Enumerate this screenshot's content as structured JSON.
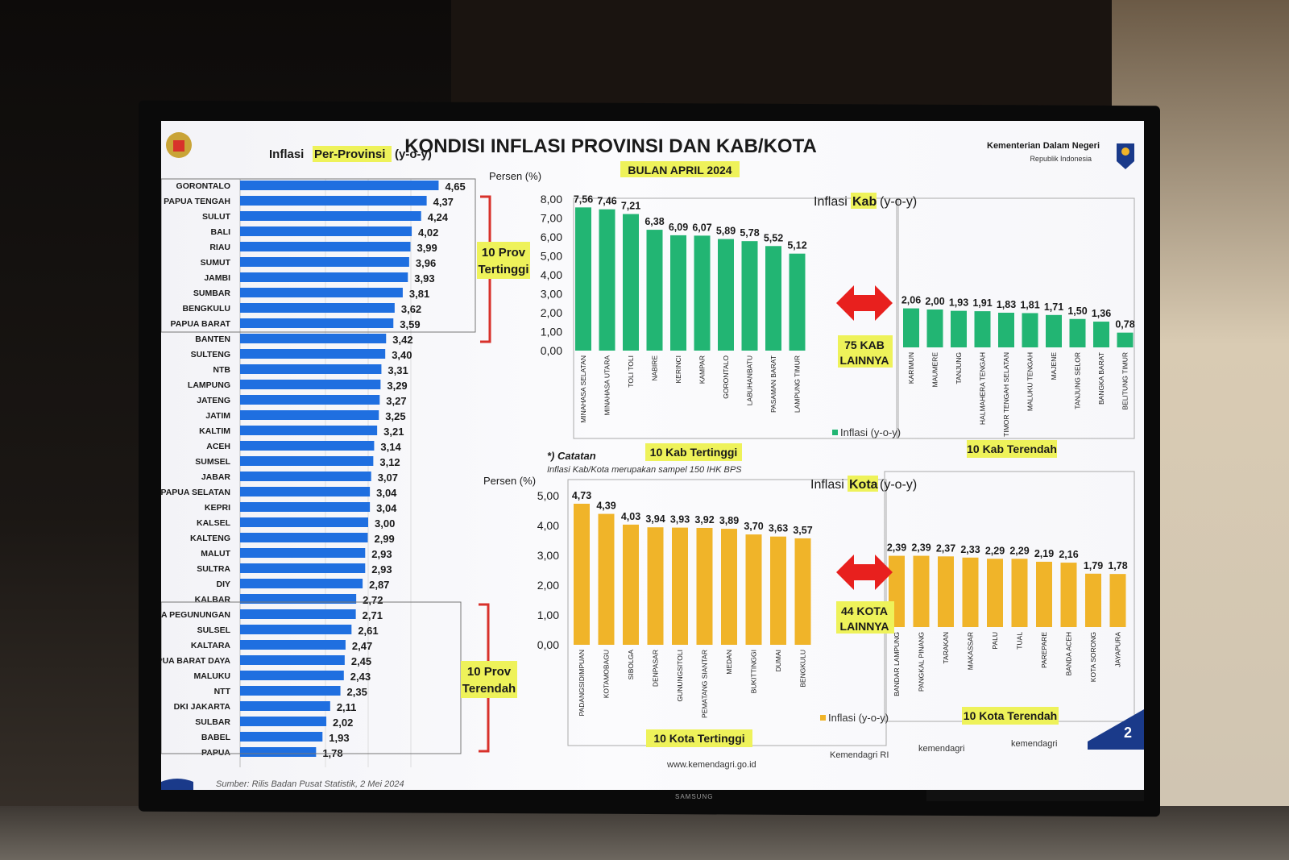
{
  "header": {
    "title": "KONDISI INFLASI PROVINSI DAN KAB/KOTA",
    "subtitle": "BULAN APRIL 2024",
    "ministry": "Kementerian Dalam Negeri",
    "ministry_sub": "Republik Indonesia",
    "page_number": "2"
  },
  "provinsi": {
    "title_pre": "Inflasi",
    "title_hl": "Per-Provinsi",
    "title_post": "(y-o-y)",
    "bar_color": "#1f6fe0",
    "top_label": [
      "10 Prov",
      "Tertinggi"
    ],
    "bottom_label": [
      "10 Prov",
      "Terendah"
    ]
  },
  "kab": {
    "persen_label": "Persen (%)",
    "title_pre": "Inflasi",
    "title_hl": "Kab",
    "title_post": "(y-o-y)",
    "bar_color": "#22b573",
    "top_label": "10 Kab Tertinggi",
    "bottom_label": "10 Kab Terendah",
    "middle_label": [
      "75 KAB",
      "LAINNYA"
    ],
    "legend": "Inflasi (y-o-y)"
  },
  "kota": {
    "persen_label": "Persen (%)",
    "title_pre": "Inflasi",
    "title_hl": "Kota",
    "title_post": "(y-o-y)",
    "bar_color": "#f0b429",
    "top_label": "10 Kota Tertinggi",
    "bottom_label": "10 Kota Terendah",
    "middle_label": [
      "44 KOTA",
      "LAINNYA"
    ],
    "legend": "Inflasi (y-o-y)"
  },
  "note": {
    "title": "*) Catatan",
    "text": "Inflasi Kab/Kota merupakan sampel 150 IHK BPS"
  },
  "footer": {
    "source": "Sumber: Rilis Badan Pusat Statistik, 2 Mei 2024",
    "website": "www.kemendagri.go.id",
    "facebook": "Kemendagri RI",
    "twitter": "kemendagri",
    "instagram": "kemendagri"
  },
  "arrow_color": "#e8201e",
  "chart_data": [
    {
      "type": "bar",
      "orientation": "horizontal",
      "title": "Inflasi Per-Provinsi (y-o-y)",
      "categories": [
        "GORONTALO",
        "PAPUA TENGAH",
        "SULUT",
        "BALI",
        "RIAU",
        "SUMUT",
        "JAMBI",
        "SUMBAR",
        "BENGKULU",
        "PAPUA BARAT",
        "BANTEN",
        "SULTENG",
        "NTB",
        "LAMPUNG",
        "JATENG",
        "JATIM",
        "KALTIM",
        "ACEH",
        "SUMSEL",
        "JABAR",
        "PAPUA SELATAN",
        "KEPRI",
        "KALSEL",
        "KALTENG",
        "MALUT",
        "SULTRA",
        "DIY",
        "KALBAR",
        "UA PEGUNUNGAN",
        "SULSEL",
        "KALTARA",
        "PUA BARAT DAYA",
        "MALUKU",
        "NTT",
        "DKI JAKARTA",
        "SULBAR",
        "BABEL",
        "PAPUA"
      ],
      "values": [
        4.65,
        4.37,
        4.24,
        4.02,
        3.99,
        3.96,
        3.93,
        3.81,
        3.62,
        3.59,
        3.42,
        3.4,
        3.31,
        3.29,
        3.27,
        3.25,
        3.21,
        3.14,
        3.12,
        3.07,
        3.04,
        3.04,
        3.0,
        2.99,
        2.93,
        2.93,
        2.87,
        2.72,
        2.71,
        2.61,
        2.47,
        2.45,
        2.43,
        2.35,
        2.11,
        2.02,
        1.93,
        1.78
      ],
      "value_labels": [
        "4,65",
        "4,37",
        "4,24",
        "4,02",
        "3,99",
        "3,96",
        "3,93",
        "3,81",
        "3,62",
        "3,59",
        "3,42",
        "3,40",
        "3,31",
        "3,29",
        "3,27",
        "3,25",
        "3,21",
        "3,14",
        "3,12",
        "3,07",
        "3,04",
        "3,04",
        "3,00",
        "2,99",
        "2,93",
        "2,93",
        "2,87",
        "2,72",
        "2,71",
        "2,61",
        "2,47",
        "2,45",
        "2,43",
        "2,35",
        "2,11",
        "2,02",
        "1,93",
        "1,78"
      ],
      "xlim": [
        0,
        5
      ]
    },
    {
      "type": "bar",
      "title": "Inflasi Kab (y-o-y)",
      "ylabel": "Persen (%)",
      "ylim": [
        0,
        8
      ],
      "yticks": [
        "0,00",
        "1,00",
        "2,00",
        "3,00",
        "4,00",
        "5,00",
        "6,00",
        "7,00",
        "8,00"
      ],
      "groups": [
        {
          "name": "10 Kab Tertinggi",
          "categories": [
            "MINAHASA SELATAN",
            "MINAHASA UTARA",
            "TOLI TOLI",
            "NABIRE",
            "KERINCI",
            "KAMPAR",
            "GORONTALO",
            "LABUHANBATU",
            "PASAMAN BARAT",
            "LAMPUNG TIMUR"
          ],
          "values": [
            7.56,
            7.46,
            7.21,
            6.38,
            6.09,
            6.07,
            5.89,
            5.78,
            5.52,
            5.12
          ],
          "value_labels": [
            "7,56",
            "7,46",
            "7,21",
            "6,38",
            "6,09",
            "6,07",
            "5,89",
            "5,78",
            "5,52",
            "5,12"
          ]
        },
        {
          "name": "10 Kab Terendah",
          "categories": [
            "KARIMUN",
            "MAUMERE",
            "TANJUNG",
            "HALMAHERA TENGAH",
            "TIMOR TENGAH SELATAN",
            "MALUKU TENGAH",
            "MAJENE",
            "TANJUNG SELOR",
            "BANGKA BARAT",
            "BELITUNG TIMUR"
          ],
          "values": [
            2.06,
            2.0,
            1.93,
            1.91,
            1.83,
            1.81,
            1.71,
            1.5,
            1.36,
            0.78
          ],
          "value_labels": [
            "2,06",
            "2,00",
            "1,93",
            "1,91",
            "1,83",
            "1,81",
            "1,71",
            "1,50",
            "1,36",
            "0,78"
          ]
        }
      ],
      "legend": "Inflasi (y-o-y)"
    },
    {
      "type": "bar",
      "title": "Inflasi Kota (y-o-y)",
      "ylabel": "Persen (%)",
      "ylim": [
        0,
        5
      ],
      "yticks": [
        "0,00",
        "1,00",
        "2,00",
        "3,00",
        "4,00",
        "5,00"
      ],
      "groups": [
        {
          "name": "10 Kota Tertinggi",
          "categories": [
            "PADANGSIDIMPUAN",
            "KOTAMOBAGU",
            "SIBOLGA",
            "DENPASAR",
            "GUNUNGSITOLI",
            "PEMATANG SIANTAR",
            "MEDAN",
            "BUKITTINGGI",
            "DUMAI",
            "BENGKULU"
          ],
          "values": [
            4.73,
            4.39,
            4.03,
            3.94,
            3.93,
            3.92,
            3.89,
            3.7,
            3.63,
            3.57
          ],
          "value_labels": [
            "4,73",
            "4,39",
            "4,03",
            "3,94",
            "3,93",
            "3,92",
            "3,89",
            "3,70",
            "3,63",
            "3,57"
          ]
        },
        {
          "name": "10 Kota Terendah",
          "categories": [
            "BANDAR LAMPUNG",
            "PANGKAL PINANG",
            "TARAKAN",
            "MAKASSAR",
            "PALU",
            "TUAL",
            "PAREPARE",
            "BANDA ACEH",
            "KOTA SORONG",
            "JAYAPURA"
          ],
          "values": [
            2.39,
            2.39,
            2.37,
            2.33,
            2.29,
            2.29,
            2.19,
            2.16,
            1.79,
            1.78
          ],
          "value_labels": [
            "2,39",
            "2,39",
            "2,37",
            "2,33",
            "2,29",
            "2,29",
            "2,19",
            "2,16",
            "1,79",
            "1,78"
          ]
        }
      ],
      "legend": "Inflasi (y-o-y)"
    }
  ]
}
